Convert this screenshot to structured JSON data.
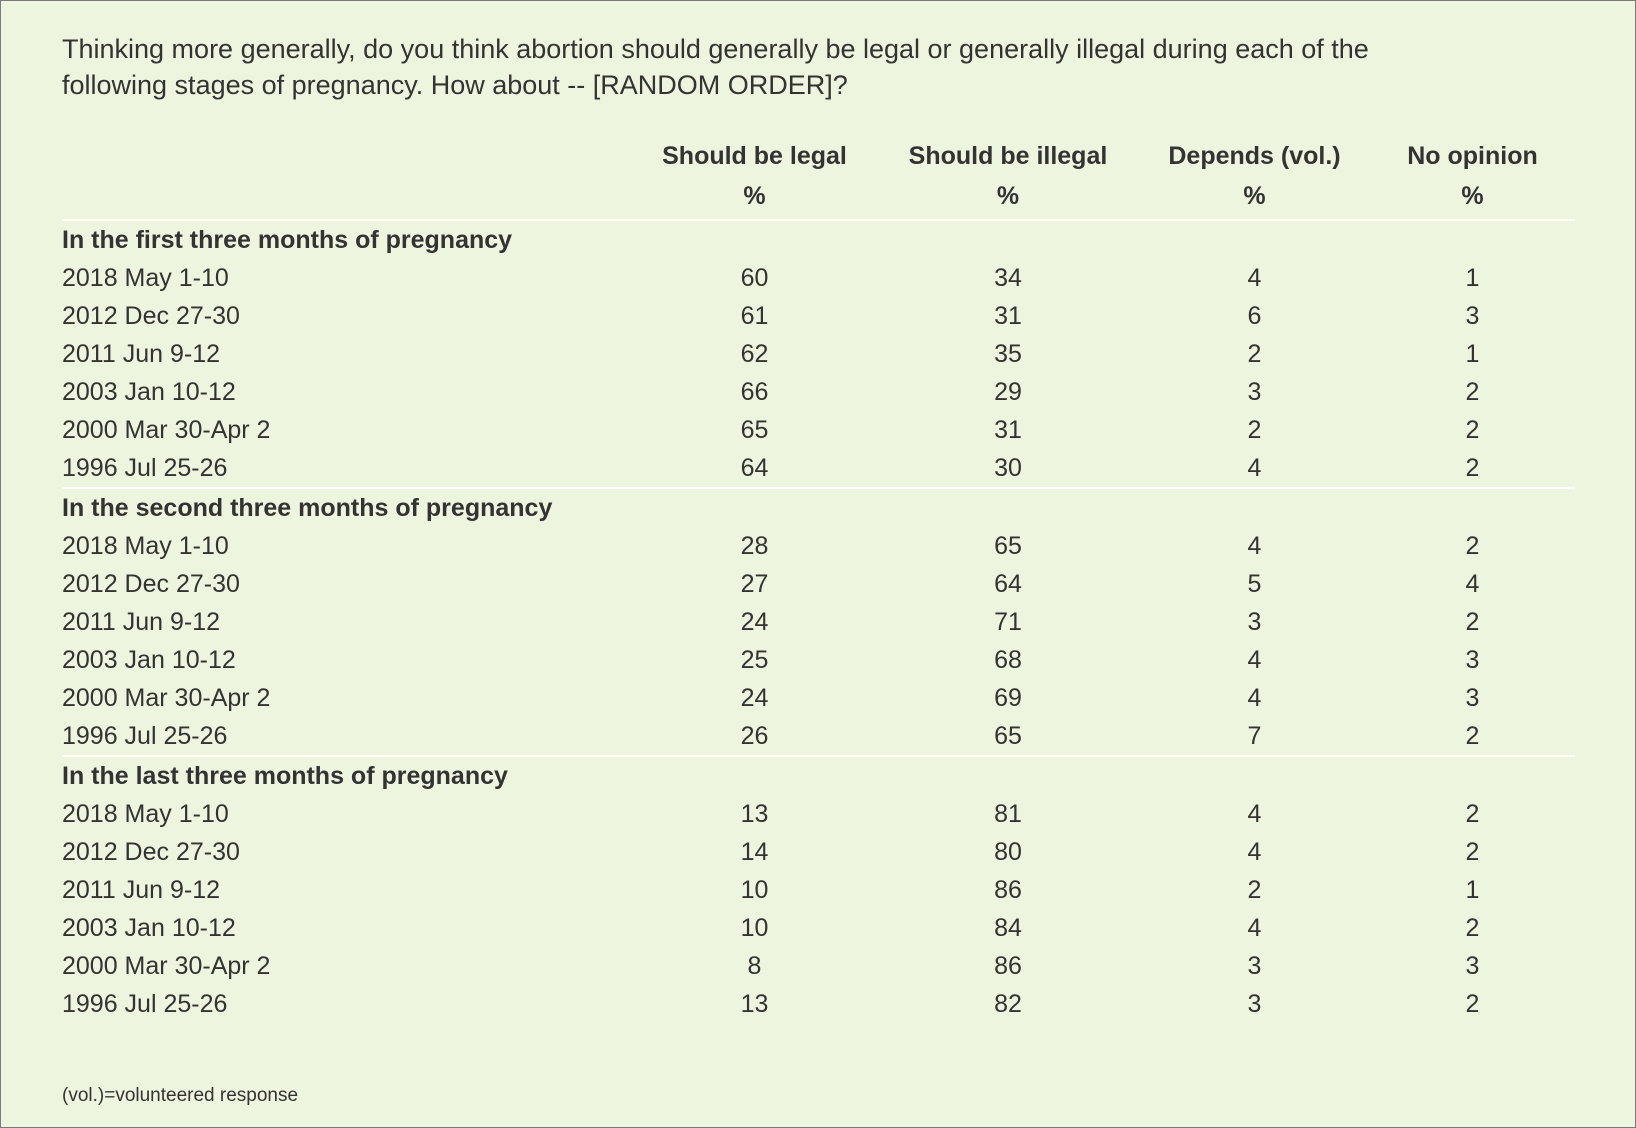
{
  "question": "Thinking more generally, do you think abortion should generally be legal or generally illegal during each of the following stages of pregnancy. How about -- [RANDOM ORDER]?",
  "columns": [
    {
      "label": "Should be legal",
      "unit": "%"
    },
    {
      "label": "Should be illegal",
      "unit": "%"
    },
    {
      "label": "Depends (vol.)",
      "unit": "%"
    },
    {
      "label": "No opinion",
      "unit": "%"
    }
  ],
  "footnote": "(vol.)=volunteered response",
  "chart_data": {
    "type": "table",
    "title": "",
    "column_headers": [
      "Should be legal",
      "Should be illegal",
      "Depends (vol.)",
      "No opinion"
    ],
    "groups": [
      {
        "label": "In the first three months of pregnancy",
        "rows": [
          {
            "date": "2018 May 1-10",
            "values": [
              60,
              34,
              4,
              1
            ]
          },
          {
            "date": "2012 Dec 27-30",
            "values": [
              61,
              31,
              6,
              3
            ]
          },
          {
            "date": "2011 Jun 9-12",
            "values": [
              62,
              35,
              2,
              1
            ]
          },
          {
            "date": "2003 Jan 10-12",
            "values": [
              66,
              29,
              3,
              2
            ]
          },
          {
            "date": "2000 Mar 30-Apr 2",
            "values": [
              65,
              31,
              2,
              2
            ]
          },
          {
            "date": "1996 Jul 25-26",
            "values": [
              64,
              30,
              4,
              2
            ]
          }
        ]
      },
      {
        "label": "In the second three months of pregnancy",
        "rows": [
          {
            "date": "2018 May 1-10",
            "values": [
              28,
              65,
              4,
              2
            ]
          },
          {
            "date": "2012 Dec 27-30",
            "values": [
              27,
              64,
              5,
              4
            ]
          },
          {
            "date": "2011 Jun 9-12",
            "values": [
              24,
              71,
              3,
              2
            ]
          },
          {
            "date": "2003 Jan 10-12",
            "values": [
              25,
              68,
              4,
              3
            ]
          },
          {
            "date": "2000 Mar 30-Apr 2",
            "values": [
              24,
              69,
              4,
              3
            ]
          },
          {
            "date": "1996 Jul 25-26",
            "values": [
              26,
              65,
              7,
              2
            ]
          }
        ]
      },
      {
        "label": "In the last three months of pregnancy",
        "rows": [
          {
            "date": "2018 May 1-10",
            "values": [
              13,
              81,
              4,
              2
            ]
          },
          {
            "date": "2012 Dec 27-30",
            "values": [
              14,
              80,
              4,
              2
            ]
          },
          {
            "date": "2011 Jun 9-12",
            "values": [
              10,
              86,
              2,
              1
            ]
          },
          {
            "date": "2003 Jan 10-12",
            "values": [
              10,
              84,
              4,
              2
            ]
          },
          {
            "date": "2000 Mar 30-Apr 2",
            "values": [
              8,
              86,
              3,
              3
            ]
          },
          {
            "date": "1996 Jul 25-26",
            "values": [
              13,
              82,
              3,
              2
            ]
          }
        ]
      }
    ]
  }
}
